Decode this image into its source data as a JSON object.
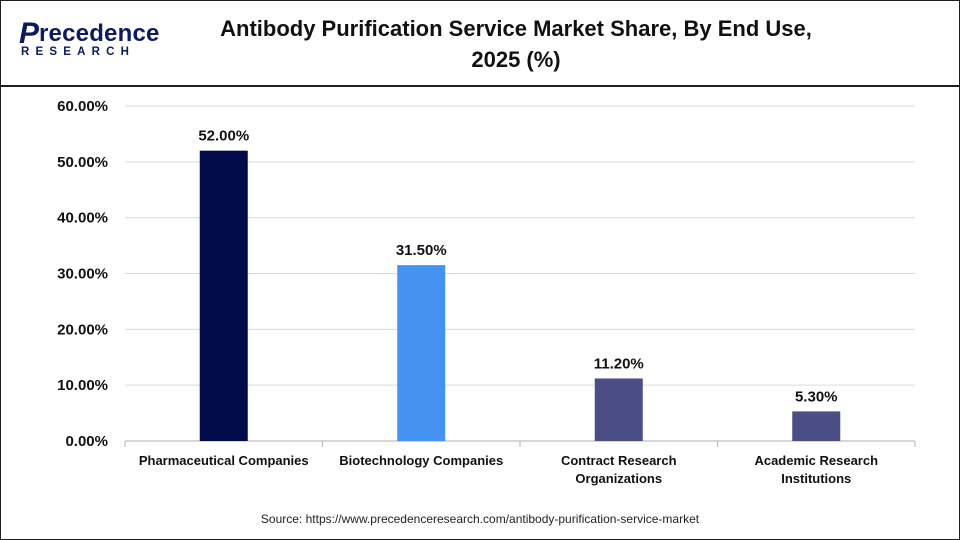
{
  "logo": {
    "initial": "P",
    "word": "recedence",
    "sub": "RESEARCH"
  },
  "title_line1": "Antibody Purification Service Market Share, By End Use,",
  "title_line2": "2025 (%)",
  "source": "Source: https://www.precedenceresearch.com/antibody-purification-service-market",
  "colors": {
    "brand": "#0d1a5c",
    "grid": "#d9d9d9",
    "axis": "#bfbfbf"
  },
  "chart_data": {
    "type": "bar",
    "categories": [
      [
        "Pharmaceutical Companies"
      ],
      [
        "Biotechnology Companies"
      ],
      [
        "Contract Research",
        "Organizations"
      ],
      [
        "Academic Research",
        "Institutions"
      ]
    ],
    "values": [
      52.0,
      31.5,
      11.2,
      5.3
    ],
    "value_labels": [
      "52.00%",
      "31.50%",
      "11.20%",
      "5.30%"
    ],
    "bar_colors": [
      "#000c4a",
      "#4593f0",
      "#4a4e85",
      "#4a4e85"
    ],
    "ylim": [
      0,
      60
    ],
    "yticks": [
      0,
      10,
      20,
      30,
      40,
      50,
      60
    ],
    "ytick_labels": [
      "0.00%",
      "10.00%",
      "20.00%",
      "30.00%",
      "40.00%",
      "50.00%",
      "60.00%"
    ],
    "grid": true,
    "legend": "none",
    "xlabel": "",
    "ylabel": ""
  }
}
